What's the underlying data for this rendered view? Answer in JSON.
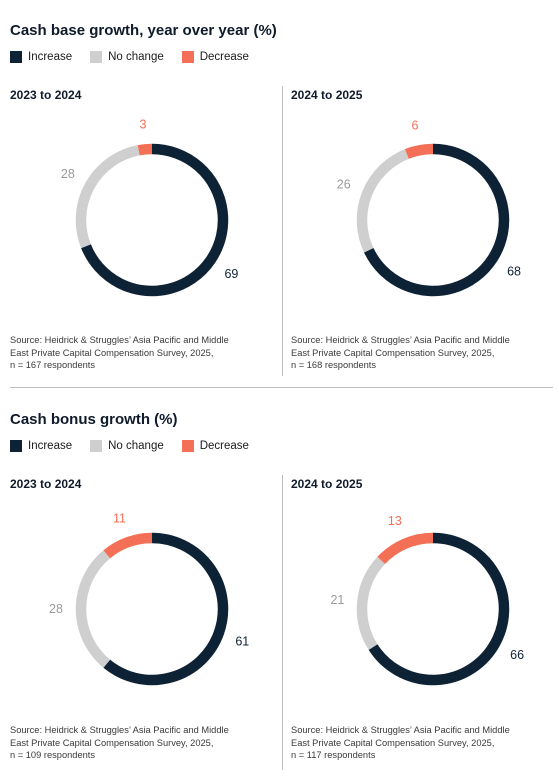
{
  "colors": {
    "increase": "#0e2236",
    "no_change": "#cfcfcf",
    "decrease": "#f36f55"
  },
  "legend": {
    "increase": "Increase",
    "no_change": "No change",
    "decrease": "Decrease"
  },
  "sections": [
    {
      "title": "Cash base growth, year over year (%)",
      "panels": [
        {
          "title": "2023 to 2024",
          "source": [
            "Source: Heidrick & Struggles’ Asia Pacific and Middle",
            "East Private Capital Compensation Survey, 2025,",
            "n = 167 respondents"
          ]
        },
        {
          "title": "2024 to 2025",
          "source": [
            "Source: Heidrick & Struggles’ Asia Pacific and Middle",
            "East Private Capital Compensation Survey, 2025,",
            "n = 168 respondents"
          ]
        }
      ]
    },
    {
      "title": "Cash bonus growth (%)",
      "panels": [
        {
          "title": "2023 to 2024",
          "source": [
            "Source: Heidrick & Struggles’ Asia Pacific and Middle",
            "East Private Capital Compensation Survey, 2025,",
            "n = 109 respondents"
          ]
        },
        {
          "title": "2024 to 2025",
          "source": [
            "Source: Heidrick & Struggles’ Asia Pacific and Middle",
            "East Private Capital Compensation Survey, 2025,",
            "n = 117 respondents"
          ]
        }
      ]
    }
  ],
  "chart_data": [
    {
      "type": "pie",
      "donut": true,
      "title": "Cash base growth, year over year (%) — 2023 to 2024",
      "categories": [
        "Increase",
        "No change",
        "Decrease"
      ],
      "values": [
        69,
        28,
        3
      ]
    },
    {
      "type": "pie",
      "donut": true,
      "title": "Cash base growth, year over year (%) — 2024 to 2025",
      "categories": [
        "Increase",
        "No change",
        "Decrease"
      ],
      "values": [
        68,
        26,
        6
      ]
    },
    {
      "type": "pie",
      "donut": true,
      "title": "Cash bonus growth (%) — 2023 to 2024",
      "categories": [
        "Increase",
        "No change",
        "Decrease"
      ],
      "values": [
        61,
        28,
        11
      ]
    },
    {
      "type": "pie",
      "donut": true,
      "title": "Cash bonus growth (%) — 2024 to 2025",
      "categories": [
        "Increase",
        "No change",
        "Decrease"
      ],
      "values": [
        66,
        21,
        13
      ]
    }
  ]
}
